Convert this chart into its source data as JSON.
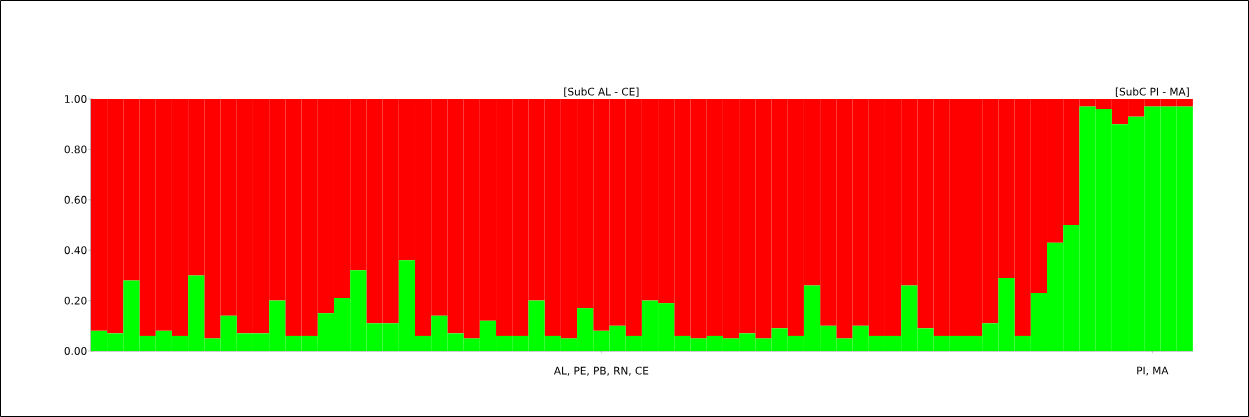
{
  "chart_data": {
    "type": "bar",
    "stacked": true,
    "categories": [
      null,
      null,
      null,
      null,
      null,
      null,
      null,
      null,
      null,
      null,
      null,
      null,
      null,
      null,
      null,
      null,
      null,
      null,
      null,
      null,
      null,
      null,
      null,
      null,
      null,
      null,
      null,
      null,
      null,
      null,
      null,
      "AL, PE, PB, RN, CE",
      null,
      null,
      null,
      null,
      null,
      null,
      null,
      null,
      null,
      null,
      null,
      null,
      null,
      null,
      null,
      null,
      null,
      null,
      null,
      null,
      null,
      null,
      null,
      null,
      null,
      null,
      null,
      null,
      null,
      null,
      null,
      null,
      null,
      "PI, MA",
      null,
      null
    ],
    "series": [
      {
        "color": "#00ff00",
        "values": [
          0.08,
          0.07,
          0.28,
          0.06,
          0.08,
          0.06,
          0.3,
          0.05,
          0.14,
          0.07,
          0.07,
          0.2,
          0.06,
          0.06,
          0.15,
          0.21,
          0.32,
          0.11,
          0.11,
          0.36,
          0.06,
          0.14,
          0.07,
          0.05,
          0.12,
          0.06,
          0.06,
          0.2,
          0.06,
          0.05,
          0.17,
          0.08,
          0.1,
          0.06,
          0.2,
          0.19,
          0.06,
          0.05,
          0.06,
          0.05,
          0.07,
          0.05,
          0.09,
          0.06,
          0.26,
          0.1,
          0.05,
          0.1,
          0.06,
          0.06,
          0.26,
          0.09,
          0.06,
          0.06,
          0.06,
          0.11,
          0.29,
          0.06,
          0.23,
          0.43,
          0.5,
          0.97,
          0.96,
          0.9,
          0.93,
          0.97,
          0.97,
          0.97
        ]
      },
      {
        "color": "#ff0000",
        "values": [
          0.92,
          0.93,
          0.72,
          0.94,
          0.92,
          0.94,
          0.7,
          0.95,
          0.86,
          0.93,
          0.93,
          0.8,
          0.94,
          0.94,
          0.85,
          0.79,
          0.68,
          0.89,
          0.89,
          0.64,
          0.94,
          0.86,
          0.93,
          0.95,
          0.88,
          0.94,
          0.94,
          0.8,
          0.94,
          0.95,
          0.83,
          0.92,
          0.9,
          0.94,
          0.8,
          0.81,
          0.94,
          0.95,
          0.94,
          0.95,
          0.93,
          0.95,
          0.91,
          0.94,
          0.74,
          0.9,
          0.95,
          0.9,
          0.94,
          0.94,
          0.74,
          0.91,
          0.94,
          0.94,
          0.94,
          0.89,
          0.71,
          0.94,
          0.77,
          0.57,
          0.5,
          0.03,
          0.04,
          0.1,
          0.07,
          0.03,
          0.03,
          0.03
        ]
      }
    ],
    "ylim": [
      0,
      1
    ],
    "yticks": [
      {
        "value": 0,
        "label": "0.00"
      },
      {
        "value": 0.2,
        "label": "0.20"
      },
      {
        "value": 0.4,
        "label": "0.40"
      },
      {
        "value": 0.6,
        "label": "0.60"
      },
      {
        "value": 0.8,
        "label": "0.80"
      },
      {
        "value": 1,
        "label": "1.00"
      }
    ],
    "annotations": [
      "[SubC AL - CE]",
      "[SubC PI - MA]"
    ]
  }
}
